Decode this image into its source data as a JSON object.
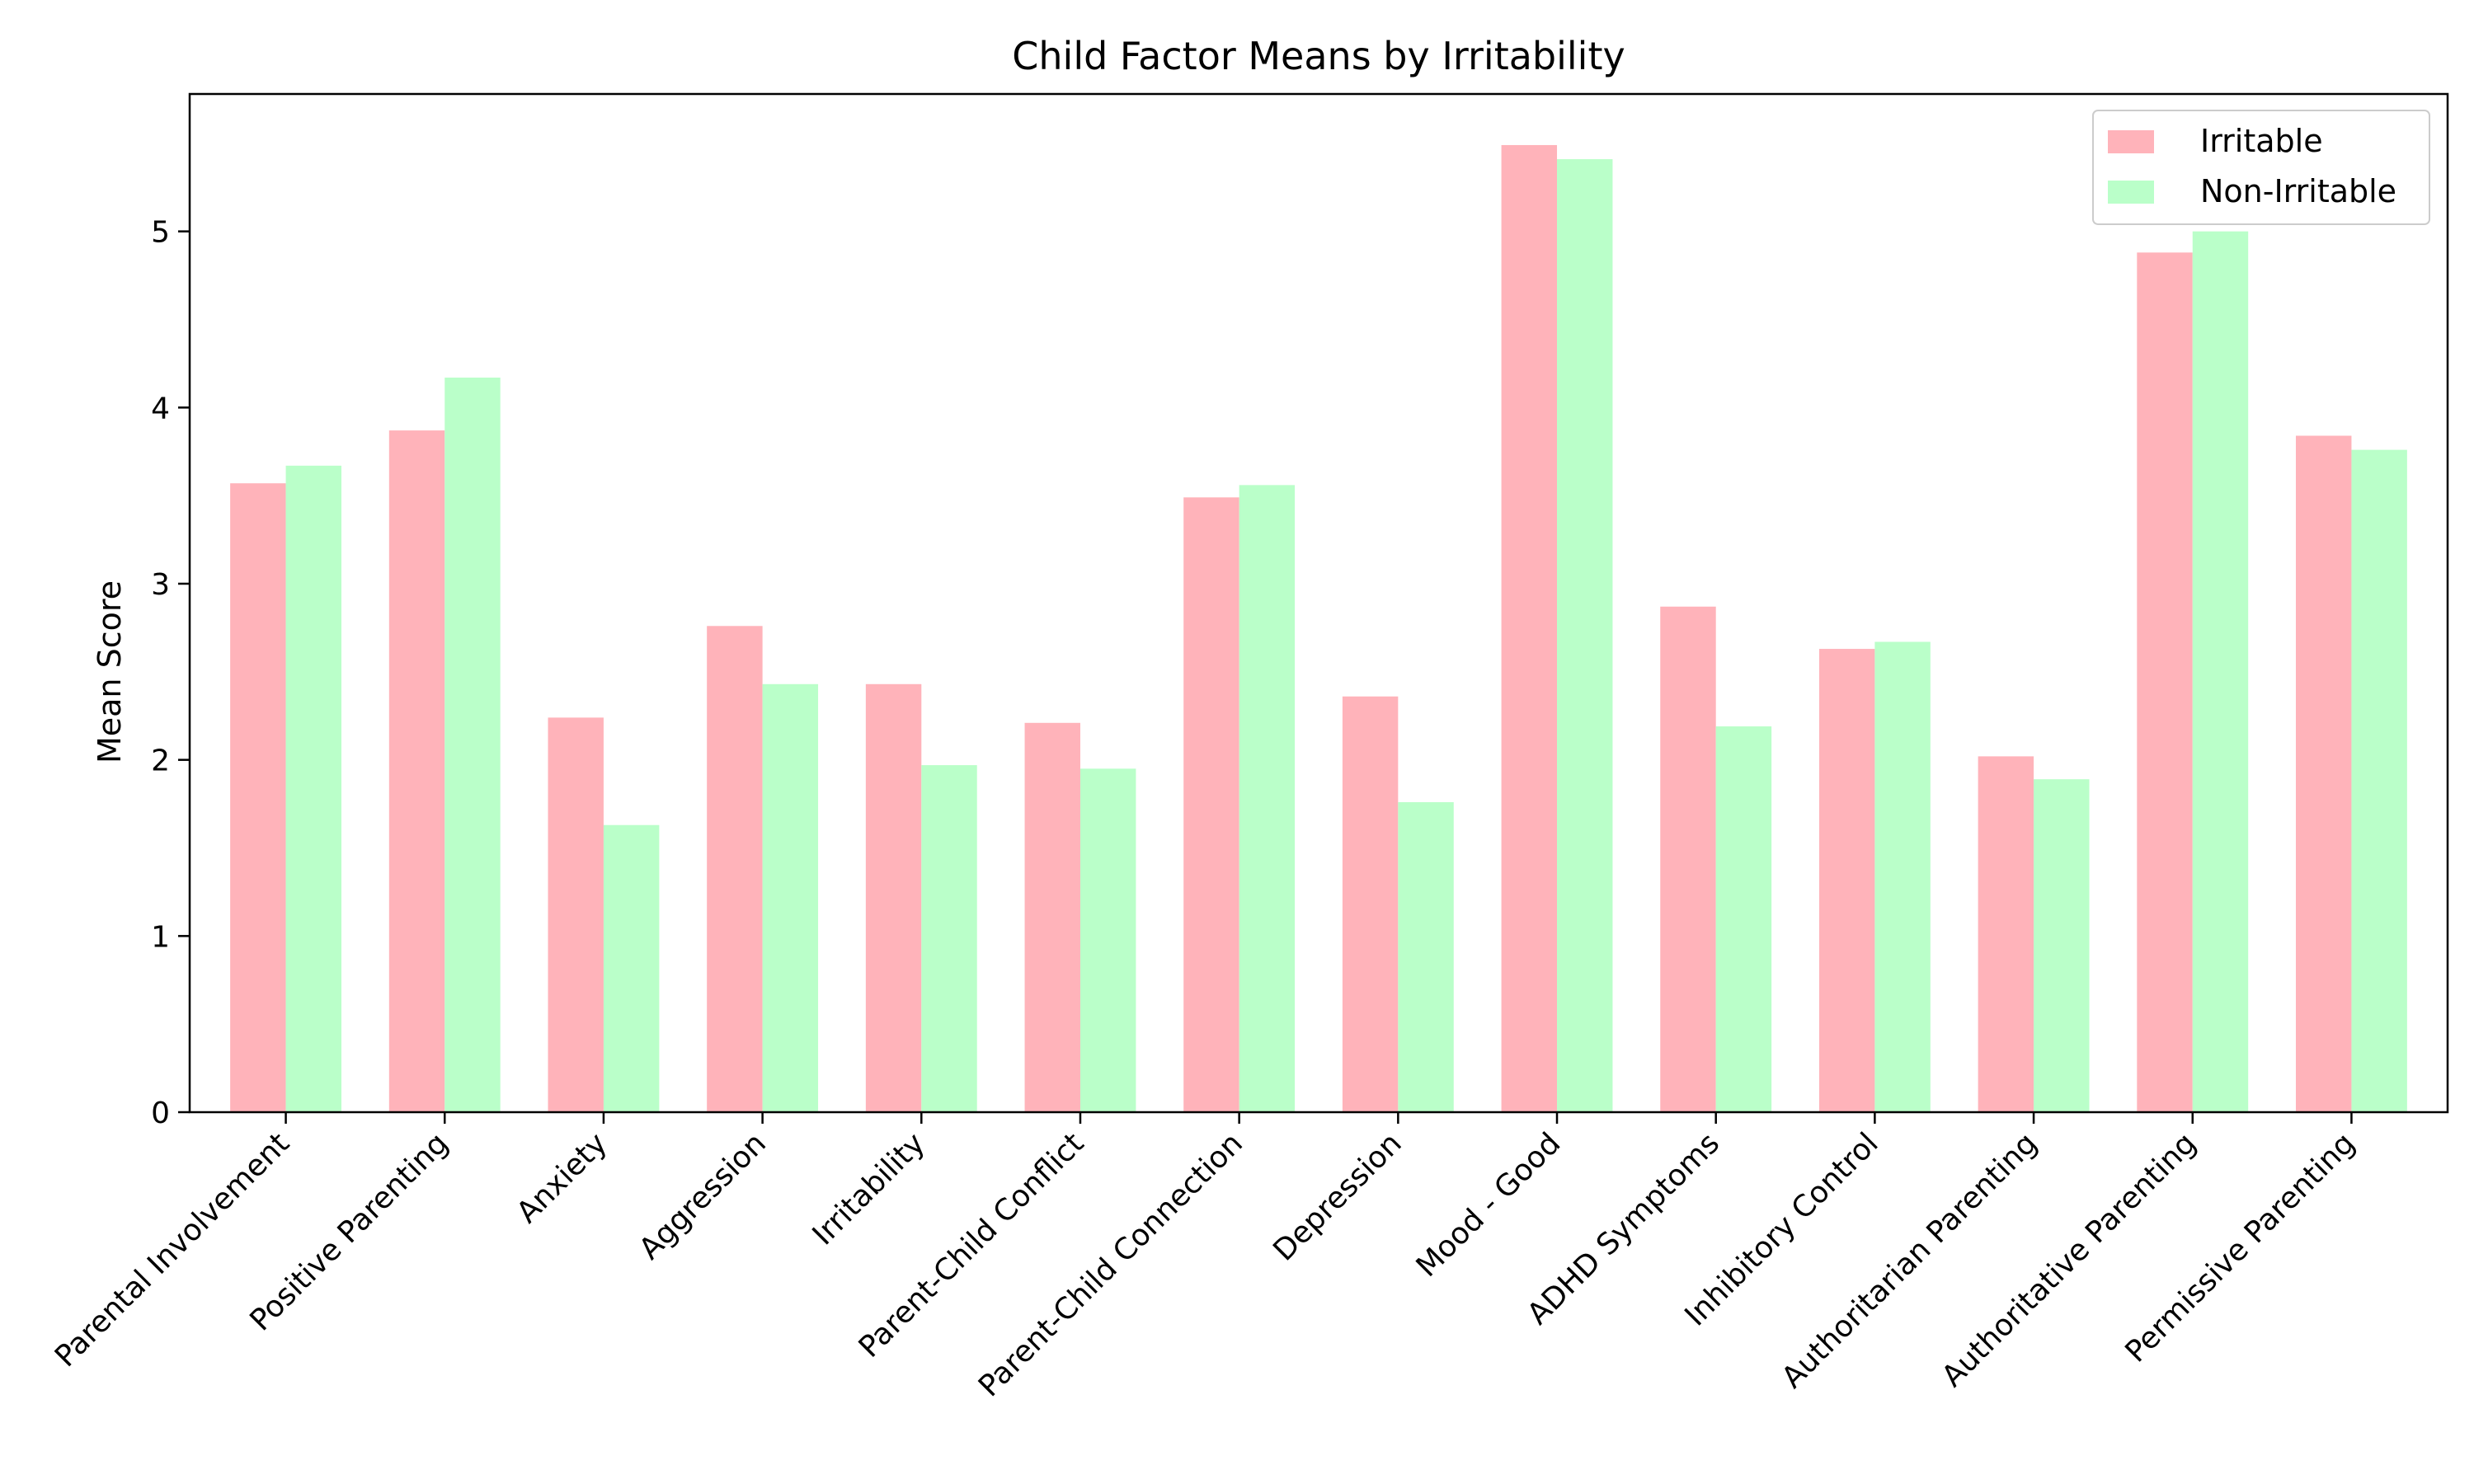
{
  "chart_data": {
    "type": "bar",
    "title": "Child Factor Means by Irritability",
    "xlabel": "",
    "ylabel": "Mean Score",
    "ylim": [
      0,
      5.78
    ],
    "yticks": [
      0,
      1,
      2,
      3,
      4,
      5
    ],
    "grid": false,
    "legend_position": "top-right",
    "categories": [
      "Parental Involvement",
      "Positive Parenting",
      "Anxiety",
      "Aggression",
      "Irritability",
      "Parent-Child Conflict",
      "Parent-Child Connection",
      "Depression",
      "Mood - Good",
      "ADHD Symptoms",
      "Inhibitory Control",
      "Authoritarian Parenting",
      "Authoritative Parenting",
      "Permissive Parenting"
    ],
    "series": [
      {
        "name": "Irritable",
        "color": "#ffb3ba",
        "values": [
          3.57,
          3.87,
          2.24,
          2.76,
          2.43,
          2.21,
          3.49,
          2.36,
          5.49,
          2.87,
          2.63,
          2.02,
          4.88,
          3.84
        ]
      },
      {
        "name": "Non-Irritable",
        "color": "#baffc9",
        "values": [
          3.67,
          4.17,
          1.63,
          2.43,
          1.97,
          1.95,
          3.56,
          1.76,
          5.41,
          2.19,
          2.67,
          1.89,
          5.0,
          3.76
        ]
      }
    ]
  }
}
